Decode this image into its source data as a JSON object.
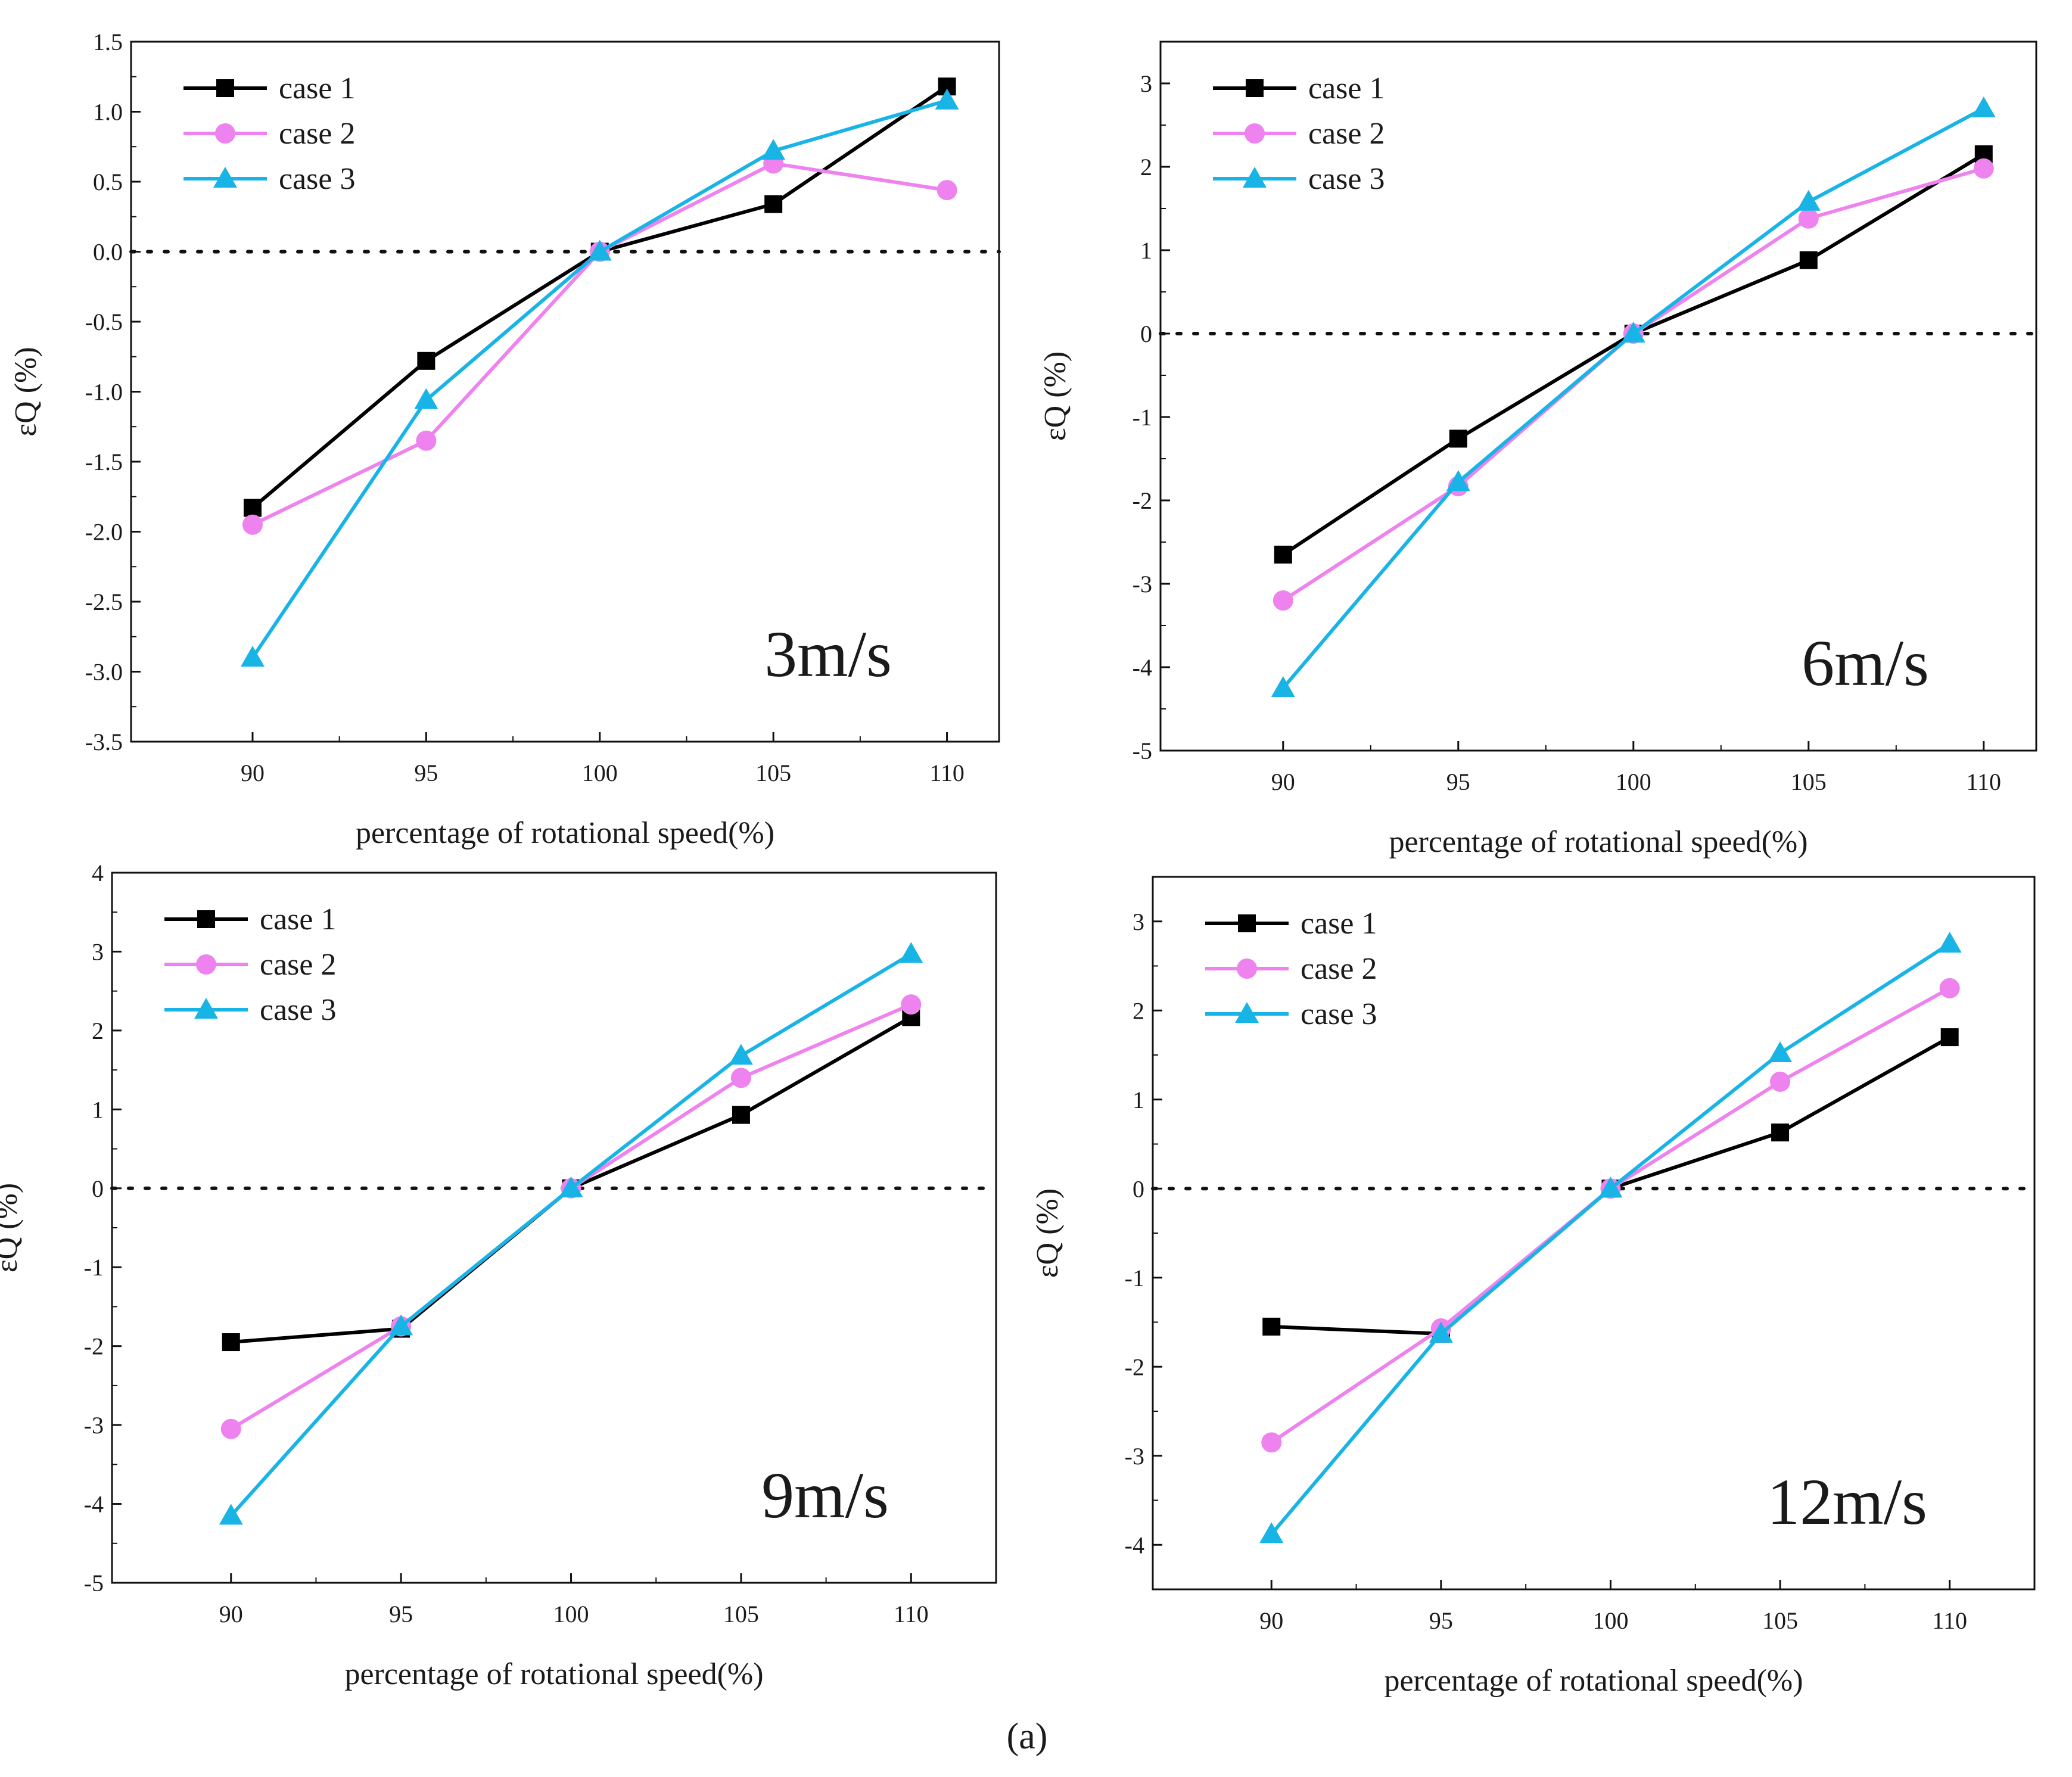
{
  "figure_caption": "(a)",
  "series_styles": [
    {
      "color": "#000000",
      "marker": "square"
    },
    {
      "color": "#ee82ee",
      "marker": "circle"
    },
    {
      "color": "#19b4e6",
      "marker": "triangle"
    }
  ],
  "chart_data": [
    {
      "type": "line",
      "annotation": "3m/s",
      "xlabel": "percentage of rotational speed(%)",
      "ylabel": "εQ (%)",
      "x": [
        90,
        95,
        100,
        105,
        110
      ],
      "xlim": [
        86.5,
        111.5
      ],
      "ylim": [
        -3.5,
        1.5
      ],
      "yticks": [
        -3.5,
        -3.0,
        -2.5,
        -2.0,
        -1.5,
        -1.0,
        -0.5,
        0.0,
        0.5,
        1.0,
        1.5
      ],
      "ytick_labels": [
        "-3.5",
        "-3.0",
        "-2.5",
        "-2.0",
        "-1.5",
        "-1.0",
        "-0.5",
        "0.0",
        "0.5",
        "1.0",
        "1.5"
      ],
      "reference_line": 0,
      "legend_position": "top-left",
      "series": [
        {
          "name": "case 1",
          "values": [
            -1.83,
            -0.78,
            0.0,
            0.34,
            1.18
          ]
        },
        {
          "name": "case 2",
          "values": [
            -1.95,
            -1.35,
            0.0,
            0.63,
            0.44
          ]
        },
        {
          "name": "case 3",
          "values": [
            -2.9,
            -1.06,
            0.0,
            0.72,
            1.08
          ]
        }
      ]
    },
    {
      "type": "line",
      "annotation": "6m/s",
      "xlabel": "percentage of rotational speed(%)",
      "ylabel": "εQ (%)",
      "x": [
        90,
        95,
        100,
        105,
        110
      ],
      "xlim": [
        86.5,
        111.5
      ],
      "ylim": [
        -5,
        3.5
      ],
      "yticks": [
        -5,
        -4,
        -3,
        -2,
        -1,
        0,
        1,
        2,
        3
      ],
      "ytick_labels": [
        "-5",
        "-4",
        "-3",
        "-2",
        "-1",
        "0",
        "1",
        "2",
        "3"
      ],
      "reference_line": 0,
      "legend_position": "top-left",
      "series": [
        {
          "name": "case 1",
          "values": [
            -2.65,
            -1.26,
            0.0,
            0.88,
            2.15
          ]
        },
        {
          "name": "case 2",
          "values": [
            -3.2,
            -1.83,
            0.0,
            1.38,
            1.98
          ]
        },
        {
          "name": "case 3",
          "values": [
            -4.25,
            -1.78,
            0.0,
            1.58,
            2.7
          ]
        }
      ]
    },
    {
      "type": "line",
      "annotation": "9m/s",
      "xlabel": "percentage of rotational speed(%)",
      "ylabel": "εQ (%)",
      "x": [
        90,
        95,
        100,
        105,
        110
      ],
      "xlim": [
        86.5,
        112.5
      ],
      "ylim": [
        -5,
        4
      ],
      "yticks": [
        -5,
        -4,
        -3,
        -2,
        -1,
        0,
        1,
        2,
        3,
        4
      ],
      "ytick_labels": [
        "-5",
        "-4",
        "-3",
        "-2",
        "-1",
        "0",
        "1",
        "2",
        "3",
        "4"
      ],
      "reference_line": 0,
      "legend_position": "top-left",
      "series": [
        {
          "name": "case 1",
          "values": [
            -1.95,
            -1.78,
            0.0,
            0.93,
            2.17
          ]
        },
        {
          "name": "case 2",
          "values": [
            -3.05,
            -1.75,
            0.0,
            1.4,
            2.33
          ]
        },
        {
          "name": "case 3",
          "values": [
            -4.15,
            -1.75,
            0.0,
            1.68,
            2.97
          ]
        }
      ]
    },
    {
      "type": "line",
      "annotation": "12m/s",
      "xlabel": "percentage of rotational speed(%)",
      "ylabel": "εQ (%)",
      "x": [
        90,
        95,
        100,
        105,
        110
      ],
      "xlim": [
        86.5,
        112.5
      ],
      "ylim": [
        -4.5,
        3.5
      ],
      "yticks": [
        -4,
        -3,
        -2,
        -1,
        0,
        1,
        2,
        3
      ],
      "ytick_labels": [
        "-4",
        "-3",
        "-2",
        "-1",
        "0",
        "1",
        "2",
        "3"
      ],
      "reference_line": 0,
      "legend_position": "top-left",
      "series": [
        {
          "name": "case 1",
          "values": [
            -1.55,
            -1.63,
            0.0,
            0.63,
            1.7
          ]
        },
        {
          "name": "case 2",
          "values": [
            -2.85,
            -1.57,
            0.0,
            1.2,
            2.25
          ]
        },
        {
          "name": "case 3",
          "values": [
            -3.88,
            -1.63,
            0.0,
            1.52,
            2.75
          ]
        }
      ]
    }
  ]
}
